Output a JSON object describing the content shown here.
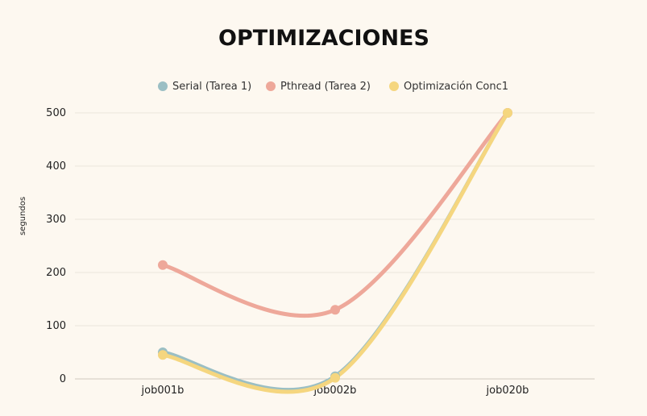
{
  "chart_data": {
    "type": "line",
    "title": "OPTIMIZACIONES",
    "ylabel": "segundos",
    "xlabel": "",
    "categories": [
      "job001b",
      "job002b",
      "job020b"
    ],
    "ylim": [
      0,
      500
    ],
    "yticks": [
      0,
      100,
      200,
      300,
      400,
      500
    ],
    "grid": true,
    "legend_position": "top",
    "series": [
      {
        "name": "Serial (Tarea 1)",
        "values": [
          50,
          5,
          500
        ],
        "color": "#9bbfc4"
      },
      {
        "name": "Pthread (Tarea 2)",
        "values": [
          214,
          130,
          500
        ],
        "color": "#eea89a"
      },
      {
        "name": "Optimización Conc1",
        "values": [
          45,
          2,
          500
        ],
        "color": "#f5d67f"
      }
    ]
  }
}
